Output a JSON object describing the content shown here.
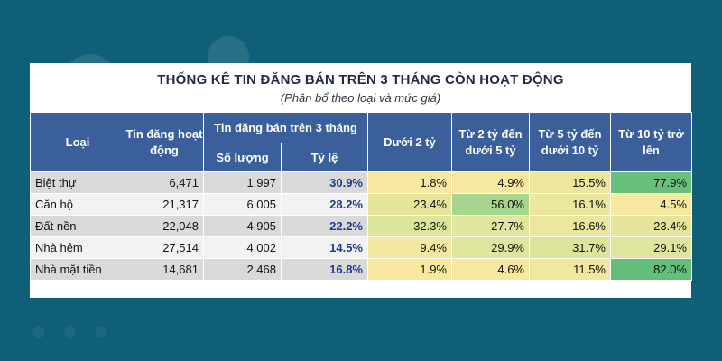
{
  "title": "THỐNG KÊ TIN ĐĂNG BÁN TRÊN 3 THÁNG CÒN HOẠT ĐỘNG",
  "subtitle": "(Phân bổ theo loại và mức giá)",
  "headers": {
    "type": "Loại",
    "active": "Tin đăng hoạt động",
    "group": "Tin đăng bán trên 3 tháng",
    "count": "Số lượng",
    "ratio": "Tỷ lệ",
    "p1": "Dưới 2 tỷ",
    "p2": "Từ 2 tỷ đến dưới 5 tỷ",
    "p3": "Từ 5 tỷ đến dưới 10 tỷ",
    "p4": "Từ 10 tỷ trở lên"
  },
  "rows": [
    {
      "type": "Biệt thự",
      "active": "6,471",
      "count": "1,997",
      "ratio": "30.9%",
      "p1": "1.8%",
      "p2": "4.9%",
      "p3": "15.5%",
      "p4": "77.9%"
    },
    {
      "type": "Căn hộ",
      "active": "21,317",
      "count": "6,005",
      "ratio": "28.2%",
      "p1": "23.4%",
      "p2": "56.0%",
      "p3": "16.1%",
      "p4": "4.5%"
    },
    {
      "type": "Đất nền",
      "active": "22,048",
      "count": "4,905",
      "ratio": "22.2%",
      "p1": "32.3%",
      "p2": "27.7%",
      "p3": "16.6%",
      "p4": "23.4%"
    },
    {
      "type": "Nhà hẻm",
      "active": "27,514",
      "count": "4,002",
      "ratio": "14.5%",
      "p1": "9.4%",
      "p2": "29.9%",
      "p3": "31.7%",
      "p4": "29.1%"
    },
    {
      "type": "Nhà mặt tiền",
      "active": "14,681",
      "count": "2,468",
      "ratio": "16.8%",
      "p1": "1.9%",
      "p2": "4.6%",
      "p3": "11.5%",
      "p4": "82.0%"
    }
  ],
  "heat_colors": {
    "low": "#fbe9a0",
    "mid": "#d6e49a",
    "high": "#63be7b"
  }
}
